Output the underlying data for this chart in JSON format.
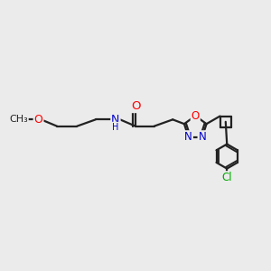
{
  "background_color": "#ebebeb",
  "bond_color": "#222222",
  "bond_width": 1.6,
  "atom_colors": {
    "O": "#ff0000",
    "N": "#0000cc",
    "Cl": "#00aa00",
    "C": "#222222",
    "H": "#444444"
  },
  "font_size": 8.5,
  "fig_w": 3.0,
  "fig_h": 3.0,
  "dpi": 100
}
